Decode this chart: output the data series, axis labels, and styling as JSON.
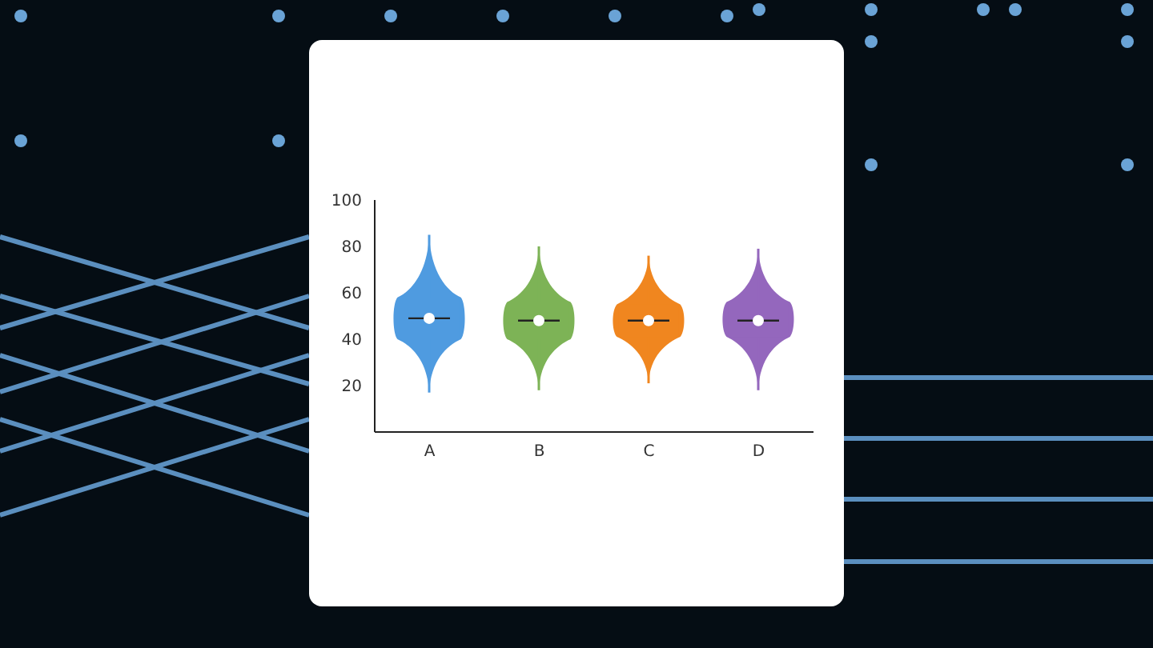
{
  "chart_data": {
    "type": "box",
    "categories": [
      "A",
      "B",
      "C",
      "D"
    ],
    "ylim": [
      0,
      100
    ],
    "yticks": [
      20,
      40,
      60,
      80,
      100
    ],
    "colors": [
      "#4f9be0",
      "#7db356",
      "#f0861f",
      "#9467bd"
    ],
    "boxes": [
      {
        "low": 17,
        "q1": 40,
        "median": 49,
        "q3": 58,
        "high": 85,
        "mean": 49
      },
      {
        "low": 18,
        "q1": 40,
        "median": 48,
        "q3": 56,
        "high": 80,
        "mean": 48
      },
      {
        "low": 21,
        "q1": 41,
        "median": 48,
        "q3": 55,
        "high": 76,
        "mean": 48
      },
      {
        "low": 18,
        "q1": 41,
        "median": 48,
        "q3": 56,
        "high": 79,
        "mean": 48
      }
    ]
  }
}
